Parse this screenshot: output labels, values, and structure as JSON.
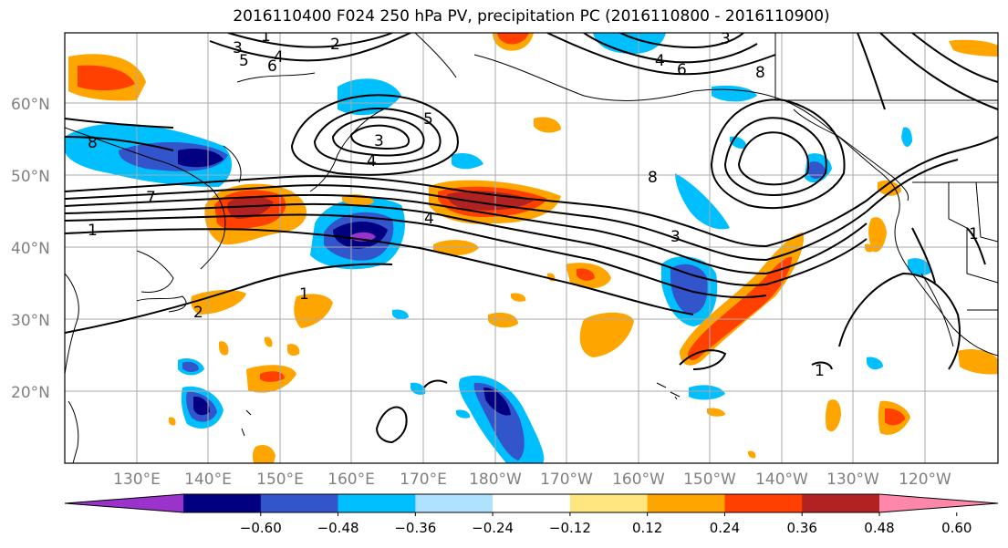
{
  "title": "2016110400 F024 250 hPa PV, precipitation PC (2016110800 - 2016110900)",
  "lat_labels": [
    "60°N",
    "50°N",
    "40°N",
    "30°N",
    "20°N"
  ],
  "lon_labels": [
    "130°E",
    "140°E",
    "150°E",
    "160°E",
    "170°E",
    "180°W",
    "170°W",
    "160°W",
    "150°W",
    "140°W",
    "130°W",
    "120°W"
  ],
  "contour_labels": [
    "1",
    "2",
    "3",
    "4",
    "5",
    "6",
    "7",
    "8"
  ],
  "colorbar": {
    "tick_labels": [
      "−0.60",
      "−0.48",
      "−0.36",
      "−0.24",
      "−0.12",
      "0.12",
      "0.24",
      "0.36",
      "0.48",
      "0.60"
    ],
    "colors": [
      "#9933cc",
      "#000080",
      "#3355cc",
      "#00bfff",
      "#aee2ff",
      "#ffffff",
      "#ffe680",
      "#ffa500",
      "#ff4000",
      "#b22222",
      "#ff88aa"
    ]
  },
  "colors": {
    "negative_strong": "#3355cc",
    "negative": "#00bfff",
    "negative_weak": "#aee2ff",
    "positive_weak": "#ffe680",
    "positive": "#ffa500",
    "positive_strong": "#ff4000",
    "contour": "#000000",
    "grid": "#aaaaaa",
    "axis_label": "#808080"
  }
}
